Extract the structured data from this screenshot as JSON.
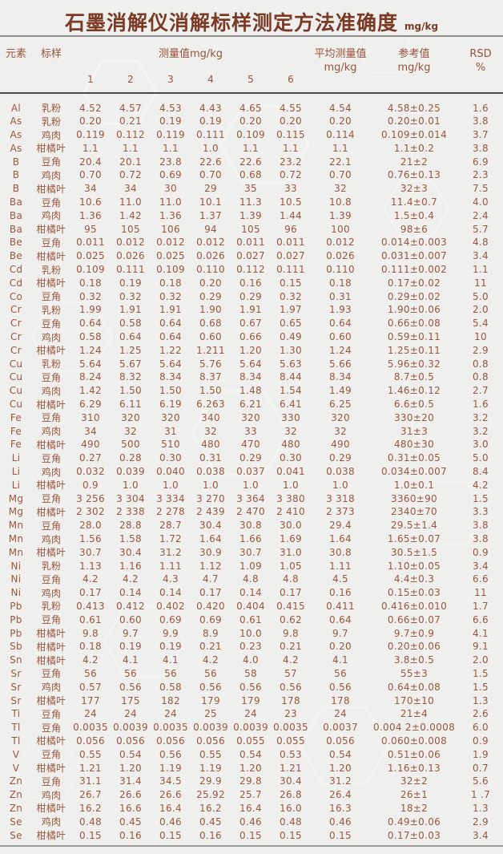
{
  "title": "石墨消解仪消解标样测定方法准确度",
  "unit": "mg/kg",
  "colors": {
    "background": "#eff0ee",
    "title_text": "#7b3a26",
    "body_text": "#9c563e",
    "rule_top": "#8e8e8e",
    "rule_mid": "#4a4a4a",
    "rule_bottom": "#9b9b9b"
  },
  "table": {
    "headers": {
      "element": "元素",
      "sample": "标样",
      "measure_group": "测量值mg/kg",
      "measure_cols": [
        "1",
        "2",
        "3",
        "4",
        "5",
        "6"
      ],
      "avg_line1": "平均测量值",
      "avg_line2": "mg/kg",
      "ref_line1": "参考值",
      "ref_line2": "mg/kg",
      "rsd_line1": "RSD",
      "rsd_line2": "%"
    },
    "rows": [
      {
        "element": "Al",
        "sample": "乳粉",
        "values": [
          "4.52",
          "4.57",
          "4.53",
          "4.43",
          "4.65",
          "4.55"
        ],
        "avg": "4.54",
        "ref": "4.58±0.25",
        "rsd": "1.6"
      },
      {
        "element": "As",
        "sample": "乳粉",
        "values": [
          "0.20",
          "0.21",
          "0.19",
          "0.19",
          "0.20",
          "0.20"
        ],
        "avg": "0.20",
        "ref": "0.20±0.01",
        "rsd": "3.8"
      },
      {
        "element": "As",
        "sample": "鸡肉",
        "values": [
          "0.119",
          "0.112",
          "0.119",
          "0.111",
          "0.109",
          "0.115"
        ],
        "avg": "0.114",
        "ref": "0.109±0.014",
        "rsd": "3.7"
      },
      {
        "element": "As",
        "sample": "柑橘叶",
        "values": [
          "1.1",
          "1.1",
          "1.1",
          "1.0",
          "1.1",
          "1.1"
        ],
        "avg": "1.1",
        "ref": "1.1±0.2",
        "rsd": "3.8"
      },
      {
        "element": "B",
        "sample": "豆角",
        "values": [
          "20.4",
          "20.1",
          "23.8",
          "22.6",
          "22.6",
          "23.2"
        ],
        "avg": "22.1",
        "ref": "21±2",
        "rsd": "6.9"
      },
      {
        "element": "B",
        "sample": "鸡肉",
        "values": [
          "0.70",
          "0.72",
          "0.69",
          "0.70",
          "0.68",
          "0.72"
        ],
        "avg": "0.70",
        "ref": "0.76±0.13",
        "rsd": "2.3"
      },
      {
        "element": "B",
        "sample": "柑橘叶",
        "values": [
          "34",
          "34",
          "30",
          "29",
          "35",
          "33"
        ],
        "avg": "32",
        "ref": "32±3",
        "rsd": "7.5"
      },
      {
        "element": "Ba",
        "sample": "豆角",
        "values": [
          "10.6",
          "11.0",
          "11.0",
          "10.1",
          "11.3",
          "10.5"
        ],
        "avg": "10.8",
        "ref": "11.4±0.7",
        "rsd": "4.0"
      },
      {
        "element": "Ba",
        "sample": "鸡肉",
        "values": [
          "1.36",
          "1.42",
          "1.36",
          "1.37",
          "1.39",
          "1.44"
        ],
        "avg": "1.39",
        "ref": "1.5±0.4",
        "rsd": "2.4"
      },
      {
        "element": "Ba",
        "sample": "柑橘叶",
        "values": [
          "95",
          "105",
          "106",
          "94",
          "105",
          "96"
        ],
        "avg": "100",
        "ref": "98±6",
        "rsd": "5.7"
      },
      {
        "element": "Be",
        "sample": "豆角",
        "values": [
          "0.011",
          "0.012",
          "0.012",
          "0.012",
          "0.011",
          "0.011"
        ],
        "avg": "0.012",
        "ref": "0.014±0.003",
        "rsd": "4.8"
      },
      {
        "element": "Be",
        "sample": "柑橘叶",
        "values": [
          "0.025",
          "0.026",
          "0.025",
          "0.026",
          "0.027",
          "0.027"
        ],
        "avg": "0.026",
        "ref": "0.031±0.007",
        "rsd": "3.4"
      },
      {
        "element": "Cd",
        "sample": "乳粉",
        "values": [
          "0.109",
          "0.111",
          "0.109",
          "0.110",
          "0.112",
          "0.111"
        ],
        "avg": "0.110",
        "ref": "0.111±0.002",
        "rsd": "1.1"
      },
      {
        "element": "Cd",
        "sample": "柑橘叶",
        "values": [
          "0.18",
          "0.19",
          "0.18",
          "0.20",
          "0.16",
          "0.15"
        ],
        "avg": "0.18",
        "ref": "0.17±0.02",
        "rsd": "11"
      },
      {
        "element": "Co",
        "sample": "豆角",
        "values": [
          "0.32",
          "0.32",
          "0.32",
          "0.29",
          "0.29",
          "0.32"
        ],
        "avg": "0.31",
        "ref": "0.29±0.02",
        "rsd": "5.0"
      },
      {
        "element": "Cr",
        "sample": "乳粉",
        "values": [
          "1.99",
          "1.91",
          "1.91",
          "1.90",
          "1.91",
          "1.97"
        ],
        "avg": "1.93",
        "ref": "1.90±0.06",
        "rsd": "2.0"
      },
      {
        "element": "Cr",
        "sample": "豆角",
        "values": [
          "0.64",
          "0.58",
          "0.64",
          "0.68",
          "0.67",
          "0.65"
        ],
        "avg": "0.64",
        "ref": "0.66±0.08",
        "rsd": "5.4"
      },
      {
        "element": "Cr",
        "sample": "鸡肉",
        "values": [
          "0.58",
          "0.64",
          "0.64",
          "0.60",
          "0.66",
          "0.49"
        ],
        "avg": "0.60",
        "ref": "0.59±0.11",
        "rsd": "10"
      },
      {
        "element": "Cr",
        "sample": "柑橘叶",
        "values": [
          "1.24",
          "1.25",
          "1.22",
          "1.211",
          "1.20",
          "1.30"
        ],
        "avg": "1.24",
        "ref": "1.25±0.11",
        "rsd": "2.9"
      },
      {
        "element": "Cu",
        "sample": "乳粉",
        "values": [
          "5.64",
          "5.67",
          "5.64",
          "5.76",
          "5.64",
          "5.63"
        ],
        "avg": "5.66",
        "ref": "5.96±0.32",
        "rsd": "0.8"
      },
      {
        "element": "Cu",
        "sample": "豆角",
        "values": [
          "8.24",
          "8.32",
          "8.34",
          "8.37",
          "8.34",
          "8.44"
        ],
        "avg": "8.34",
        "ref": "8.7±0.5",
        "rsd": "0.8"
      },
      {
        "element": "Cu",
        "sample": "鸡肉",
        "values": [
          "1.42",
          "1.50",
          "1.50",
          "1.50",
          "1.48",
          "1.54"
        ],
        "avg": "1.49",
        "ref": "1.46±0.12",
        "rsd": "2.7"
      },
      {
        "element": "Cu",
        "sample": "柑橘叶",
        "values": [
          "6.29",
          "6.11",
          "6.19",
          "6.263",
          "6.21",
          "6.41"
        ],
        "avg": "6.25",
        "ref": "6.6±0.5",
        "rsd": "1.6"
      },
      {
        "element": "Fe",
        "sample": "豆角",
        "values": [
          "310",
          "320",
          "320",
          "340",
          "320",
          "330"
        ],
        "avg": "320",
        "ref": "330±20",
        "rsd": "3.2"
      },
      {
        "element": "Fe",
        "sample": "鸡肉",
        "values": [
          "34",
          "32",
          "31",
          "32",
          "33",
          "32"
        ],
        "avg": "32",
        "ref": "31±3",
        "rsd": "3.2"
      },
      {
        "element": "Fe",
        "sample": "柑橘叶",
        "values": [
          "490",
          "500",
          "510",
          "480",
          "470",
          "480"
        ],
        "avg": "490",
        "ref": "480±30",
        "rsd": "3.0"
      },
      {
        "element": "Li",
        "sample": "豆角",
        "values": [
          "0.27",
          "0.28",
          "0.30",
          "0.31",
          "0.29",
          "0.30"
        ],
        "avg": "0.29",
        "ref": "0.31±0.05",
        "rsd": "5.0"
      },
      {
        "element": "Li",
        "sample": "鸡肉",
        "values": [
          "0.032",
          "0.039",
          "0.040",
          "0.038",
          "0.037",
          "0.041"
        ],
        "avg": "0.038",
        "ref": "0.034±0.007",
        "rsd": "8.4"
      },
      {
        "element": "Li",
        "sample": "柑橘叶",
        "values": [
          "0.9",
          "1.0",
          "1.0",
          "1.0",
          "1.0",
          "1.0"
        ],
        "avg": "1.0",
        "ref": "1.0±0.1",
        "rsd": "4.2"
      },
      {
        "element": "Mg",
        "sample": "豆角",
        "values": [
          "3 256",
          "3 304",
          "3 334",
          "3 270",
          "3 364",
          "3 380"
        ],
        "avg": "3 318",
        "ref": "3360±90",
        "rsd": "1.5"
      },
      {
        "element": "Mg",
        "sample": "柑橘叶",
        "values": [
          "2 302",
          "2 338",
          "2 278",
          "2 439",
          "2 470",
          "2 410"
        ],
        "avg": "2 373",
        "ref": "2340±70",
        "rsd": "3.3"
      },
      {
        "element": "Mn",
        "sample": "豆角",
        "values": [
          "28.0",
          "28.8",
          "28.7",
          "30.4",
          "30.8",
          "30.0"
        ],
        "avg": "29.4",
        "ref": "29.5±1.4",
        "rsd": "3.8"
      },
      {
        "element": "Mn",
        "sample": "鸡肉",
        "values": [
          "1.56",
          "1.58",
          "1.72",
          "1.64",
          "1.66",
          "1.69"
        ],
        "avg": "1.64",
        "ref": "1.65±0.07",
        "rsd": "3.8"
      },
      {
        "element": "Mn",
        "sample": "柑橘叶",
        "values": [
          "30.7",
          "30.4",
          "31.2",
          "30.9",
          "30.7",
          "31.0"
        ],
        "avg": "30.8",
        "ref": "30.5±1.5",
        "rsd": "0.9"
      },
      {
        "element": "Ni",
        "sample": "乳粉",
        "values": [
          "1.13",
          "1.16",
          "1.11",
          "1.12",
          "1.09",
          "1.05"
        ],
        "avg": "1.11",
        "ref": "1.10±0.05",
        "rsd": "3.4"
      },
      {
        "element": "Ni",
        "sample": "豆角",
        "values": [
          "4.2",
          "4.2",
          "4.3",
          "4.7",
          "4.8",
          "4.8"
        ],
        "avg": "4.5",
        "ref": "4.4±0.3",
        "rsd": "6.6"
      },
      {
        "element": "Ni",
        "sample": "鸡肉",
        "values": [
          "0.17",
          "0.14",
          "0.14",
          "0.17",
          "0.14",
          "0.17"
        ],
        "avg": "0.16",
        "ref": "0.15±0.03",
        "rsd": "11"
      },
      {
        "element": "Pb",
        "sample": "乳粉",
        "values": [
          "0.413",
          "0.412",
          "0.402",
          "0.420",
          "0.404",
          "0.415"
        ],
        "avg": "0.411",
        "ref": "0.416±0.010",
        "rsd": "1.7"
      },
      {
        "element": "Pb",
        "sample": "豆角",
        "values": [
          "0.61",
          "0.60",
          "0.69",
          "0.69",
          "0.61",
          "0.62"
        ],
        "avg": "0.64",
        "ref": "0.66±0.07",
        "rsd": "6.6"
      },
      {
        "element": "Pb",
        "sample": "柑橘叶",
        "values": [
          "9.8",
          "9.7",
          "9.9",
          "8.9",
          "10.0",
          "9.8"
        ],
        "avg": "9.7",
        "ref": "9.7±0.9",
        "rsd": "4.1"
      },
      {
        "element": "Sb",
        "sample": "柑橘叶",
        "values": [
          "0.18",
          "0.19",
          "0.19",
          "0.21",
          "0.23",
          "0.21"
        ],
        "avg": "0.20",
        "ref": "0.20±0.06",
        "rsd": "9.1"
      },
      {
        "element": "Sn",
        "sample": "柑橘叶",
        "values": [
          "4.2",
          "4.1",
          "4.1",
          "4.2",
          "4.0",
          "4.2"
        ],
        "avg": "4.1",
        "ref": "3.8±0.5",
        "rsd": "2.0"
      },
      {
        "element": "Sr",
        "sample": "豆角",
        "values": [
          "56",
          "56",
          "56",
          "56",
          "58",
          "57"
        ],
        "avg": "56",
        "ref": "55±3",
        "rsd": "1.5"
      },
      {
        "element": "Sr",
        "sample": "鸡肉",
        "values": [
          "0.57",
          "0.56",
          "0.58",
          "0.56",
          "0.56",
          "0.56"
        ],
        "avg": "0.56",
        "ref": "0.64±0.08",
        "rsd": "1.5"
      },
      {
        "element": "Sr",
        "sample": "柑橘叶",
        "values": [
          "177",
          "175",
          "182",
          "179",
          "179",
          "178"
        ],
        "avg": "178",
        "ref": "170±10",
        "rsd": "1.3"
      },
      {
        "element": "Ti",
        "sample": "豆角",
        "values": [
          "24",
          "24",
          "24",
          "25",
          "24",
          "23"
        ],
        "avg": "24",
        "ref": "21±4",
        "rsd": "2.6"
      },
      {
        "element": "Tl",
        "sample": "豆角",
        "values": [
          "0.0035",
          "0.0039",
          "0.0035",
          "0.0039",
          "0.0039",
          "0.0035"
        ],
        "avg": "0.0037",
        "ref": "0.004 2±0.0008",
        "rsd": "6.0"
      },
      {
        "element": "Tl",
        "sample": "柑橘叶",
        "values": [
          "0.056",
          "0.056",
          "0.056",
          "0.056",
          "0.055",
          "0.055"
        ],
        "avg": "0.056",
        "ref": "0.060±0.008",
        "rsd": "0.9"
      },
      {
        "element": "V",
        "sample": "豆角",
        "values": [
          "0.55",
          "0.54",
          "0.56",
          "0.55",
          "0.54",
          "0.53"
        ],
        "avg": "0.54",
        "ref": "0.51±0.06",
        "rsd": "1.9"
      },
      {
        "element": "V",
        "sample": "柑橘叶",
        "values": [
          "1.21",
          "1.20",
          "1.19",
          "1.19",
          "1.20",
          "1.21"
        ],
        "avg": "1.20",
        "ref": "1.16±0.13",
        "rsd": "0.7"
      },
      {
        "element": "Zn",
        "sample": "豆角",
        "values": [
          "31.1",
          "31.4",
          "34.5",
          "29.9",
          "29.8",
          "30.4"
        ],
        "avg": "31.2",
        "ref": "32±2",
        "rsd": "5.6"
      },
      {
        "element": "Zn",
        "sample": "鸡肉",
        "values": [
          "26.7",
          "26.6",
          "26.6",
          "25.92",
          "25.7",
          "26.8"
        ],
        "avg": "26.4",
        "ref": "26±1",
        "rsd": "1 .7"
      },
      {
        "element": "Zn",
        "sample": "柑橘叶",
        "values": [
          "16.2",
          "16.6",
          "16.4",
          "16.2",
          "16.4",
          "16.0"
        ],
        "avg": "16.3",
        "ref": "18±2",
        "rsd": "1.3"
      },
      {
        "element": "Se",
        "sample": "鸡肉",
        "values": [
          "0.48",
          "0.45",
          "0.46",
          "0.45",
          "0.46",
          "0.48"
        ],
        "avg": "0.46",
        "ref": "0.49±0.06",
        "rsd": "2.9"
      },
      {
        "element": "Se",
        "sample": "柑橘叶",
        "values": [
          "0.15",
          "0.16",
          "0.15",
          "0.16",
          "0.15",
          "0.15"
        ],
        "avg": "0.15",
        "ref": "0.17±0.03",
        "rsd": "3.4"
      }
    ]
  }
}
